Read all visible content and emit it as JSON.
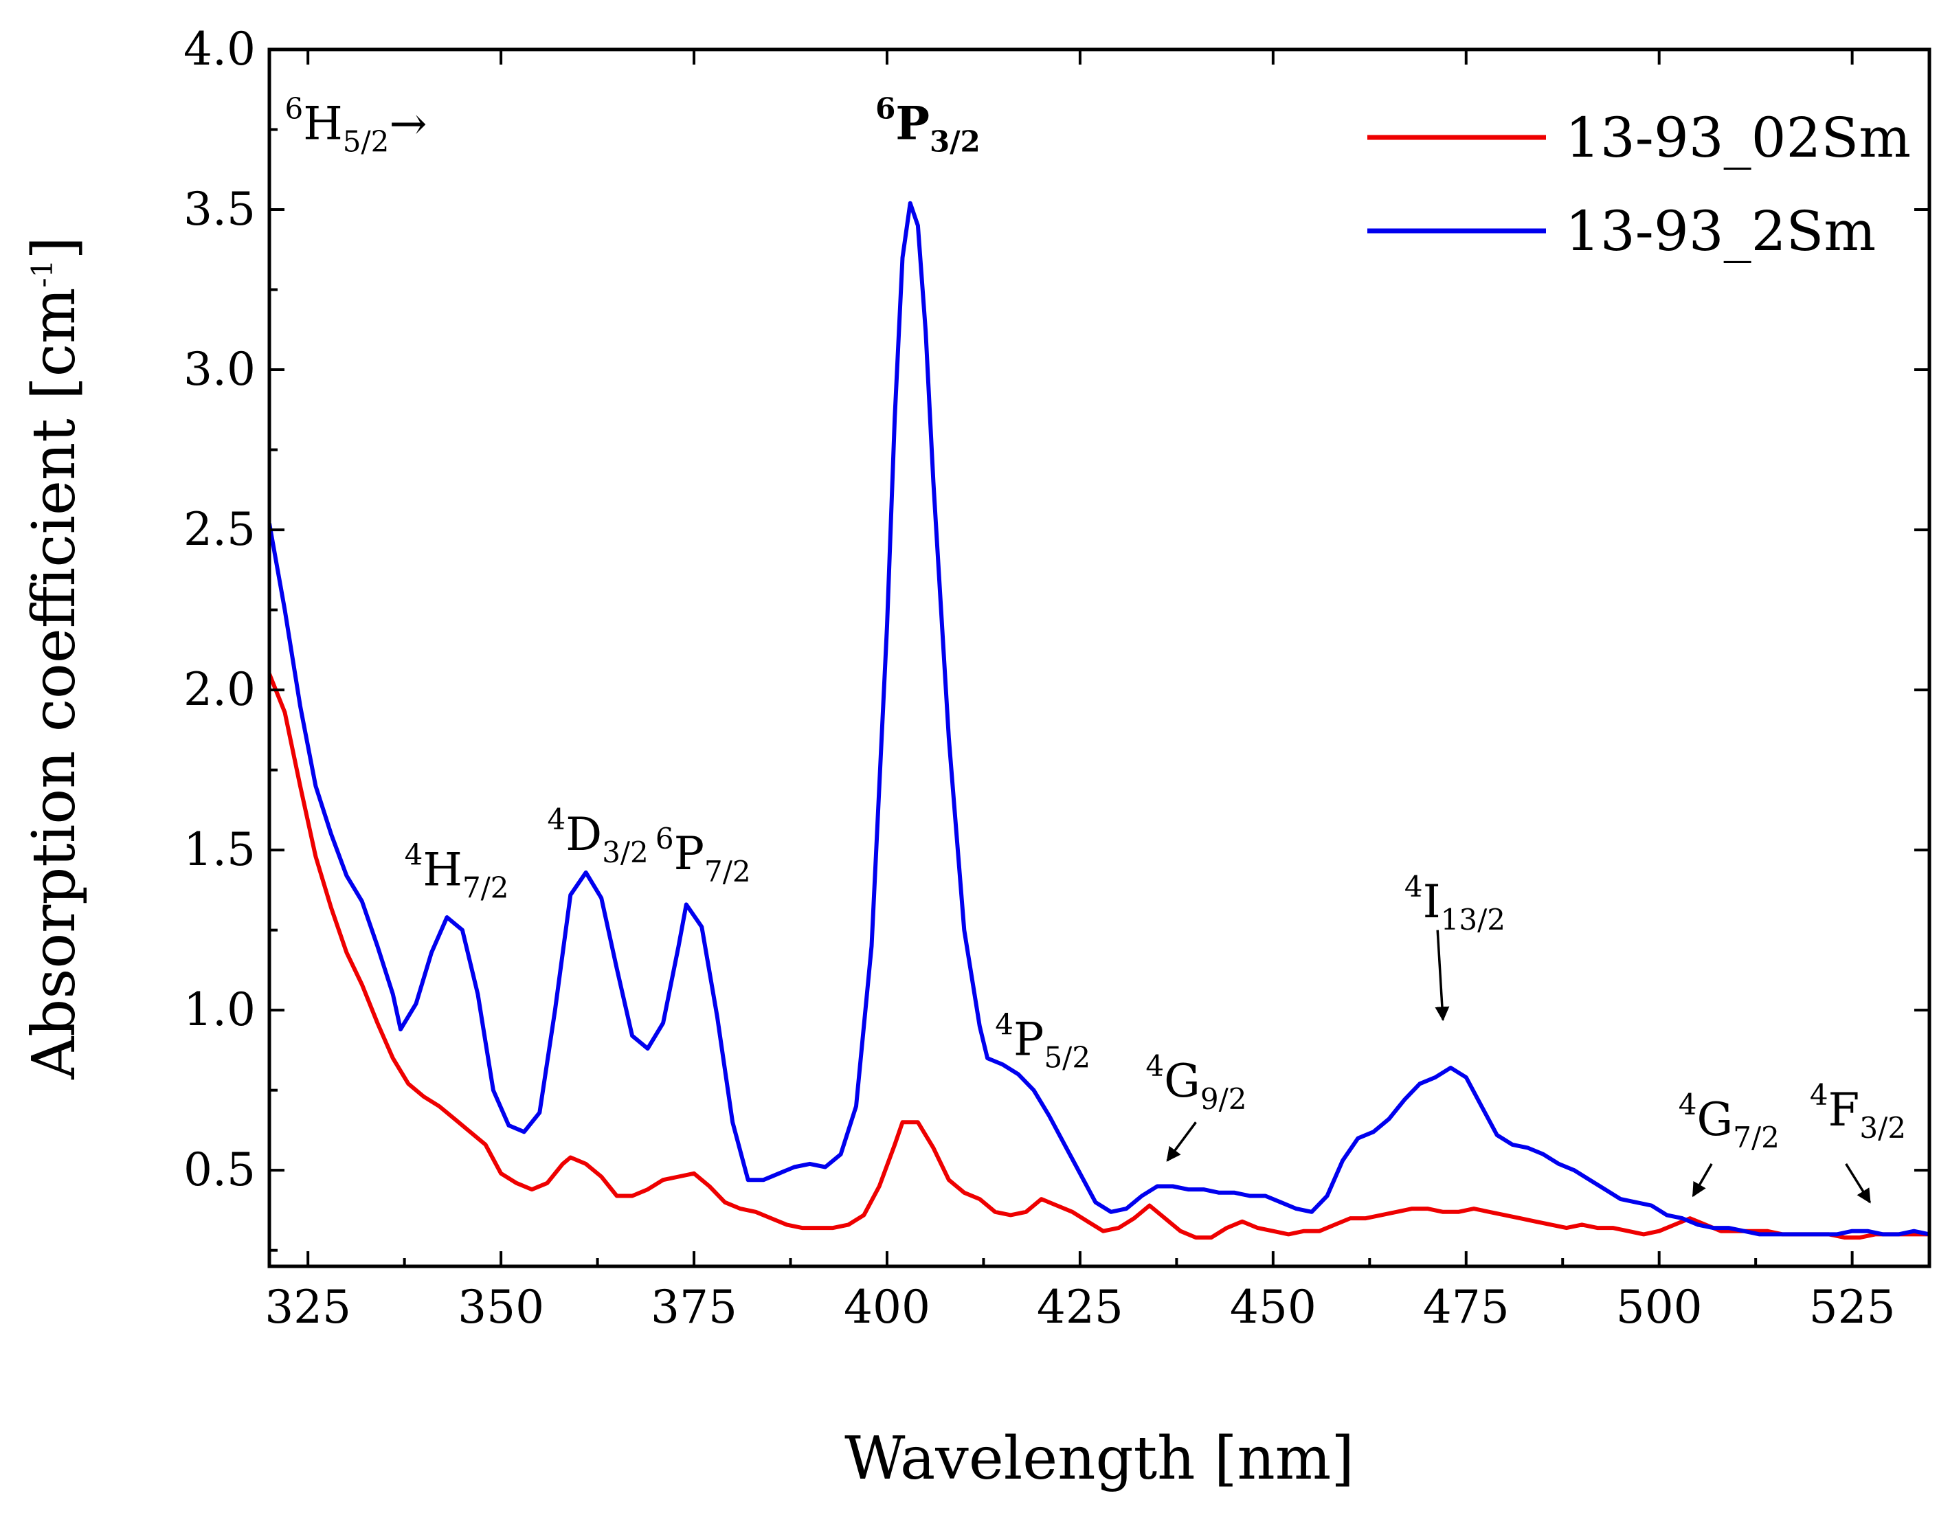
{
  "chart_data": {
    "type": "line",
    "title": "",
    "xlabel": "Wavelength [nm]",
    "ylabel": {
      "main": "Absorption coefficient [cm",
      "sup": "-1",
      "close": "]"
    },
    "xlim": [
      320,
      535
    ],
    "ylim": [
      0.2,
      4.0
    ],
    "xticks": [
      325,
      350,
      375,
      400,
      425,
      450,
      475,
      500,
      525
    ],
    "xtick_labels": [
      "325",
      "350",
      "375",
      "400",
      "425",
      "450",
      "475",
      "500",
      "525"
    ],
    "yticks": [
      0.5,
      1.0,
      1.5,
      2.0,
      2.5,
      3.0,
      3.5,
      4.0
    ],
    "ytick_labels": [
      "0.5",
      "1.0",
      "1.5",
      "2.0",
      "2.5",
      "3.0",
      "3.5",
      "4.0"
    ],
    "grid": false,
    "legend_position": "top-right",
    "series": [
      {
        "name": "13-93_02Sm",
        "color": "#ee0000",
        "points": [
          [
            320,
            2.05
          ],
          [
            322,
            1.93
          ],
          [
            324,
            1.7
          ],
          [
            326,
            1.48
          ],
          [
            328,
            1.32
          ],
          [
            330,
            1.18
          ],
          [
            332,
            1.08
          ],
          [
            334,
            0.96
          ],
          [
            336,
            0.85
          ],
          [
            338,
            0.77
          ],
          [
            340,
            0.73
          ],
          [
            342,
            0.7
          ],
          [
            344,
            0.66
          ],
          [
            346,
            0.62
          ],
          [
            348,
            0.58
          ],
          [
            350,
            0.49
          ],
          [
            352,
            0.46
          ],
          [
            354,
            0.44
          ],
          [
            356,
            0.46
          ],
          [
            358,
            0.52
          ],
          [
            359,
            0.54
          ],
          [
            361,
            0.52
          ],
          [
            363,
            0.48
          ],
          [
            365,
            0.42
          ],
          [
            367,
            0.42
          ],
          [
            369,
            0.44
          ],
          [
            371,
            0.47
          ],
          [
            373,
            0.48
          ],
          [
            375,
            0.49
          ],
          [
            377,
            0.45
          ],
          [
            379,
            0.4
          ],
          [
            381,
            0.38
          ],
          [
            383,
            0.37
          ],
          [
            385,
            0.35
          ],
          [
            387,
            0.33
          ],
          [
            389,
            0.32
          ],
          [
            391,
            0.32
          ],
          [
            393,
            0.32
          ],
          [
            395,
            0.33
          ],
          [
            397,
            0.36
          ],
          [
            399,
            0.45
          ],
          [
            401,
            0.58
          ],
          [
            402,
            0.65
          ],
          [
            404,
            0.65
          ],
          [
            406,
            0.57
          ],
          [
            408,
            0.47
          ],
          [
            410,
            0.43
          ],
          [
            412,
            0.41
          ],
          [
            414,
            0.37
          ],
          [
            416,
            0.36
          ],
          [
            418,
            0.37
          ],
          [
            420,
            0.41
          ],
          [
            422,
            0.39
          ],
          [
            424,
            0.37
          ],
          [
            426,
            0.34
          ],
          [
            428,
            0.31
          ],
          [
            430,
            0.32
          ],
          [
            432,
            0.35
          ],
          [
            434,
            0.39
          ],
          [
            436,
            0.35
          ],
          [
            438,
            0.31
          ],
          [
            440,
            0.29
          ],
          [
            442,
            0.29
          ],
          [
            444,
            0.32
          ],
          [
            446,
            0.34
          ],
          [
            448,
            0.32
          ],
          [
            450,
            0.31
          ],
          [
            452,
            0.3
          ],
          [
            454,
            0.31
          ],
          [
            456,
            0.31
          ],
          [
            458,
            0.33
          ],
          [
            460,
            0.35
          ],
          [
            462,
            0.35
          ],
          [
            464,
            0.36
          ],
          [
            466,
            0.37
          ],
          [
            468,
            0.38
          ],
          [
            470,
            0.38
          ],
          [
            472,
            0.37
          ],
          [
            474,
            0.37
          ],
          [
            476,
            0.38
          ],
          [
            478,
            0.37
          ],
          [
            480,
            0.36
          ],
          [
            482,
            0.35
          ],
          [
            484,
            0.34
          ],
          [
            486,
            0.33
          ],
          [
            488,
            0.32
          ],
          [
            490,
            0.33
          ],
          [
            492,
            0.32
          ],
          [
            494,
            0.32
          ],
          [
            496,
            0.31
          ],
          [
            498,
            0.3
          ],
          [
            500,
            0.31
          ],
          [
            502,
            0.33
          ],
          [
            504,
            0.35
          ],
          [
            506,
            0.33
          ],
          [
            508,
            0.31
          ],
          [
            510,
            0.31
          ],
          [
            512,
            0.31
          ],
          [
            514,
            0.31
          ],
          [
            516,
            0.3
          ],
          [
            518,
            0.3
          ],
          [
            520,
            0.3
          ],
          [
            522,
            0.3
          ],
          [
            524,
            0.29
          ],
          [
            526,
            0.29
          ],
          [
            528,
            0.3
          ],
          [
            530,
            0.3
          ],
          [
            532,
            0.3
          ],
          [
            535,
            0.3
          ]
        ]
      },
      {
        "name": "13-93_2Sm",
        "color": "#0000ee",
        "points": [
          [
            320,
            2.52
          ],
          [
            322,
            2.25
          ],
          [
            324,
            1.95
          ],
          [
            326,
            1.7
          ],
          [
            328,
            1.55
          ],
          [
            330,
            1.42
          ],
          [
            332,
            1.34
          ],
          [
            334,
            1.2
          ],
          [
            336,
            1.05
          ],
          [
            337,
            0.94
          ],
          [
            339,
            1.02
          ],
          [
            341,
            1.18
          ],
          [
            343,
            1.29
          ],
          [
            345,
            1.25
          ],
          [
            347,
            1.05
          ],
          [
            349,
            0.75
          ],
          [
            351,
            0.64
          ],
          [
            353,
            0.62
          ],
          [
            355,
            0.68
          ],
          [
            357,
            1.0
          ],
          [
            359,
            1.36
          ],
          [
            361,
            1.43
          ],
          [
            363,
            1.35
          ],
          [
            365,
            1.13
          ],
          [
            367,
            0.92
          ],
          [
            369,
            0.88
          ],
          [
            371,
            0.96
          ],
          [
            373,
            1.2
          ],
          [
            374,
            1.33
          ],
          [
            376,
            1.26
          ],
          [
            378,
            0.98
          ],
          [
            380,
            0.65
          ],
          [
            382,
            0.47
          ],
          [
            384,
            0.47
          ],
          [
            386,
            0.49
          ],
          [
            388,
            0.51
          ],
          [
            390,
            0.52
          ],
          [
            392,
            0.51
          ],
          [
            394,
            0.55
          ],
          [
            396,
            0.7
          ],
          [
            398,
            1.2
          ],
          [
            400,
            2.2
          ],
          [
            401,
            2.85
          ],
          [
            402,
            3.35
          ],
          [
            403,
            3.52
          ],
          [
            404,
            3.45
          ],
          [
            405,
            3.12
          ],
          [
            406,
            2.65
          ],
          [
            408,
            1.85
          ],
          [
            410,
            1.25
          ],
          [
            412,
            0.95
          ],
          [
            413,
            0.85
          ],
          [
            415,
            0.83
          ],
          [
            417,
            0.8
          ],
          [
            419,
            0.75
          ],
          [
            421,
            0.67
          ],
          [
            423,
            0.58
          ],
          [
            425,
            0.49
          ],
          [
            427,
            0.4
          ],
          [
            429,
            0.37
          ],
          [
            431,
            0.38
          ],
          [
            433,
            0.42
          ],
          [
            435,
            0.45
          ],
          [
            437,
            0.45
          ],
          [
            439,
            0.44
          ],
          [
            441,
            0.44
          ],
          [
            443,
            0.43
          ],
          [
            445,
            0.43
          ],
          [
            447,
            0.42
          ],
          [
            449,
            0.42
          ],
          [
            451,
            0.4
          ],
          [
            453,
            0.38
          ],
          [
            455,
            0.37
          ],
          [
            457,
            0.42
          ],
          [
            459,
            0.53
          ],
          [
            461,
            0.6
          ],
          [
            463,
            0.62
          ],
          [
            465,
            0.66
          ],
          [
            467,
            0.72
          ],
          [
            469,
            0.77
          ],
          [
            471,
            0.79
          ],
          [
            473,
            0.82
          ],
          [
            475,
            0.79
          ],
          [
            477,
            0.7
          ],
          [
            479,
            0.61
          ],
          [
            481,
            0.58
          ],
          [
            483,
            0.57
          ],
          [
            485,
            0.55
          ],
          [
            487,
            0.52
          ],
          [
            489,
            0.5
          ],
          [
            491,
            0.47
          ],
          [
            493,
            0.44
          ],
          [
            495,
            0.41
          ],
          [
            497,
            0.4
          ],
          [
            499,
            0.39
          ],
          [
            501,
            0.36
          ],
          [
            503,
            0.35
          ],
          [
            505,
            0.33
          ],
          [
            507,
            0.32
          ],
          [
            509,
            0.32
          ],
          [
            511,
            0.31
          ],
          [
            513,
            0.3
          ],
          [
            515,
            0.3
          ],
          [
            517,
            0.3
          ],
          [
            519,
            0.3
          ],
          [
            521,
            0.3
          ],
          [
            523,
            0.3
          ],
          [
            525,
            0.31
          ],
          [
            527,
            0.31
          ],
          [
            529,
            0.3
          ],
          [
            531,
            0.3
          ],
          [
            533,
            0.31
          ],
          [
            535,
            0.3
          ]
        ]
      }
    ],
    "annotations": [
      {
        "id": "6H52",
        "sup": "6",
        "base": "H",
        "sub": "5/2",
        "suffix": "→",
        "bold": false,
        "x": 322,
        "y": 3.72,
        "arrow": null
      },
      {
        "id": "6P32",
        "sup": "6",
        "base": "P",
        "sub": "3/2",
        "suffix": "",
        "bold": true,
        "x": 398.5,
        "y": 3.72,
        "arrow": null
      },
      {
        "id": "4H72",
        "sup": "4",
        "base": "H",
        "sub": "7/2",
        "suffix": "",
        "bold": false,
        "x": 337.5,
        "y": 1.39,
        "arrow": null
      },
      {
        "id": "4D32",
        "sup": "4",
        "base": "D",
        "sub": "3/2",
        "suffix": "",
        "bold": false,
        "x": 356,
        "y": 1.5,
        "arrow": null
      },
      {
        "id": "6P72",
        "sup": "6",
        "base": "P",
        "sub": "7/2",
        "suffix": "",
        "bold": false,
        "x": 370,
        "y": 1.44,
        "arrow": null
      },
      {
        "id": "4P52",
        "sup": "4",
        "base": "P",
        "sub": "5/2",
        "suffix": "",
        "bold": false,
        "x": 414,
        "y": 0.86,
        "arrow": null
      },
      {
        "id": "4G92",
        "sup": "4",
        "base": "G",
        "sub": "9/2",
        "suffix": "",
        "bold": false,
        "x": 433.5,
        "y": 0.73,
        "arrow": {
          "from": [
            440,
            0.65
          ],
          "to": [
            436.3,
            0.53
          ]
        }
      },
      {
        "id": "4I132",
        "sup": "4",
        "base": "I",
        "sub": "13/2",
        "suffix": "",
        "bold": false,
        "x": 467,
        "y": 1.29,
        "arrow": {
          "from": [
            471.3,
            1.25
          ],
          "to": [
            472,
            0.97
          ]
        }
      },
      {
        "id": "4G72",
        "sup": "4",
        "base": "G",
        "sub": "7/2",
        "suffix": "",
        "bold": false,
        "x": 502.5,
        "y": 0.61,
        "arrow": {
          "from": [
            506.8,
            0.52
          ],
          "to": [
            504.4,
            0.42
          ]
        }
      },
      {
        "id": "4F32",
        "sup": "4",
        "base": "F",
        "sub": "3/2",
        "suffix": "",
        "bold": false,
        "x": 519.5,
        "y": 0.64,
        "arrow": {
          "from": [
            524.2,
            0.52
          ],
          "to": [
            527.3,
            0.4
          ]
        }
      }
    ]
  }
}
